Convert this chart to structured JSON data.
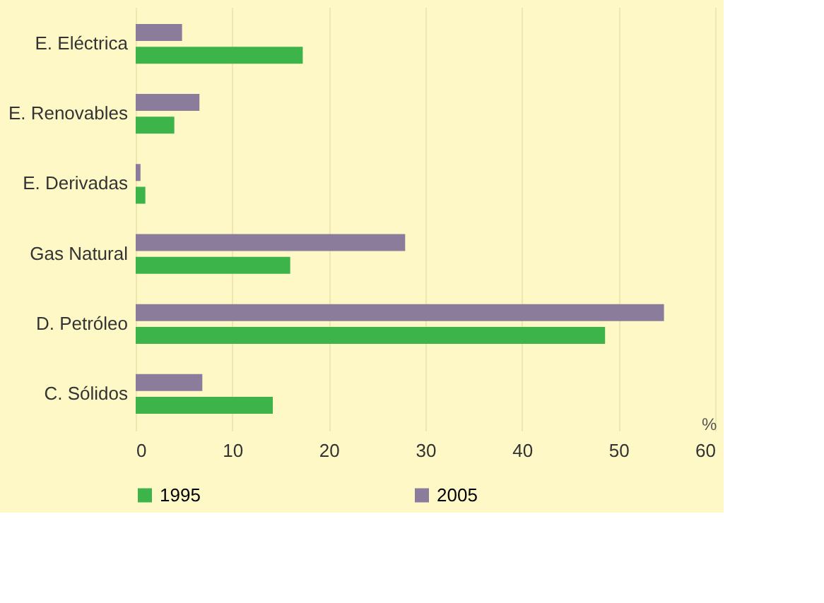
{
  "chart_data": {
    "type": "bar",
    "orientation": "horizontal",
    "xlabel": "%",
    "categories": [
      "E. Eléctrica",
      "E. Renovables",
      "E. Derivadas",
      "Gas Natural",
      "D. Petróleo",
      "C. Sólidos"
    ],
    "series": [
      {
        "name": "1995",
        "color": "#3cb449",
        "values": [
          17.3,
          4,
          1,
          16,
          48.6,
          14.2
        ]
      },
      {
        "name": "2005",
        "color": "#8c7c9c",
        "values": [
          4.8,
          6.6,
          0.5,
          27.9,
          54.7,
          6.9
        ]
      }
    ],
    "xlim": [
      0,
      60
    ],
    "xticks": [
      0,
      10,
      20,
      30,
      40,
      50,
      60
    ],
    "grid": "x",
    "legend": "bottom"
  }
}
